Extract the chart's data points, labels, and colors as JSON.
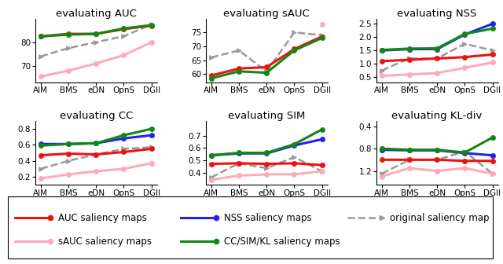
{
  "x_labels": [
    "AIM",
    "BMS",
    "eDN",
    "OpnS",
    "DGII"
  ],
  "titles": [
    "evaluating AUC",
    "evaluating sAUC",
    "evaluating NSS",
    "evaluating CC",
    "evaluating SIM",
    "evaluating KL-div"
  ],
  "series": {
    "AUC_maps": {
      "color": "#ee1111",
      "linewidth": 2.2,
      "marker": "o",
      "markersize": 4.5,
      "zorder": 3,
      "linestyle": "-",
      "data": {
        "AUC": [
          82.5,
          83.5,
          83.5,
          85.5,
          87.0
        ],
        "sAUC": [
          59.5,
          62.0,
          62.5,
          69.0,
          73.5
        ],
        "NSS": [
          1.1,
          1.15,
          1.2,
          1.25,
          1.35
        ],
        "CC": [
          0.47,
          0.49,
          0.48,
          0.51,
          0.55
        ],
        "SIM": [
          0.47,
          0.475,
          0.47,
          0.475,
          0.46
        ],
        "KL-div": [
          1.0,
          1.0,
          1.0,
          1.02,
          1.02
        ]
      }
    },
    "sAUC_maps": {
      "color": "#ffaabb",
      "linewidth": 2.2,
      "marker": "o",
      "markersize": 4.5,
      "zorder": 2,
      "linestyle": "-",
      "data": {
        "AUC": [
          65.5,
          68.0,
          71.0,
          74.5,
          80.0
        ],
        "sAUC": [
          null,
          null,
          null,
          null,
          78.0
        ],
        "NSS": [
          0.55,
          0.6,
          0.65,
          0.85,
          1.05
        ],
        "CC": [
          0.18,
          0.23,
          0.27,
          0.3,
          0.37
        ],
        "SIM": [
          0.34,
          0.375,
          0.385,
          0.385,
          0.41
        ],
        "KL-div": [
          1.3,
          1.15,
          1.2,
          1.15,
          1.25
        ]
      }
    },
    "NSS_maps": {
      "color": "#2222ee",
      "linewidth": 2.2,
      "marker": "o",
      "markersize": 4.5,
      "zorder": 3,
      "linestyle": "-",
      "data": {
        "AUC": null,
        "sAUC": null,
        "NSS": [
          1.5,
          1.55,
          1.55,
          2.1,
          2.5
        ],
        "CC": [
          0.61,
          0.61,
          0.62,
          0.68,
          0.72
        ],
        "SIM": [
          0.54,
          0.555,
          0.555,
          0.62,
          0.67
        ],
        "KL-div": [
          0.82,
          0.83,
          0.83,
          0.88,
          0.92
        ]
      }
    },
    "CC_SIM_KL_maps": {
      "color": "#118811",
      "linewidth": 2.2,
      "marker": "o",
      "markersize": 4.5,
      "zorder": 3,
      "linestyle": "-",
      "data": {
        "AUC": [
          82.4,
          83.2,
          83.5,
          85.8,
          87.2
        ],
        "sAUC": [
          58.5,
          61.0,
          60.5,
          68.5,
          73.0
        ],
        "NSS": [
          1.52,
          1.57,
          1.58,
          2.12,
          2.32
        ],
        "CC": [
          0.59,
          0.61,
          0.62,
          0.72,
          0.8
        ],
        "SIM": [
          0.54,
          0.56,
          0.56,
          0.63,
          0.75
        ],
        "KL-div": [
          0.8,
          0.82,
          0.82,
          0.87,
          0.6
        ]
      }
    },
    "original": {
      "color": "#999999",
      "linewidth": 1.8,
      "marker": ">",
      "markersize": 5,
      "zorder": 1,
      "linestyle": "--",
      "data": {
        "AUC": [
          74.0,
          77.5,
          80.0,
          82.5,
          87.5
        ],
        "sAUC": [
          66.0,
          68.5,
          61.0,
          75.0,
          74.0
        ],
        "NSS": [
          0.75,
          1.2,
          1.2,
          1.75,
          1.5
        ],
        "CC": [
          0.3,
          0.4,
          0.48,
          0.55,
          0.57
        ],
        "SIM": [
          0.36,
          0.475,
          0.435,
          0.525,
          0.41
        ],
        "KL-div": [
          1.25,
          1.0,
          1.0,
          0.85,
          1.25
        ]
      }
    }
  },
  "ylims": {
    "AUC": [
      63,
      90
    ],
    "sAUC": [
      57,
      80
    ],
    "NSS": [
      0.3,
      2.7
    ],
    "CC": [
      0.1,
      0.9
    ],
    "SIM": [
      0.3,
      0.82
    ],
    "KL-div": [
      0.3,
      1.45
    ]
  },
  "yticks": {
    "AUC": [
      70,
      80
    ],
    "sAUC": [
      60,
      65,
      70,
      75
    ],
    "NSS": [
      0.5,
      1.0,
      1.5,
      2.0,
      2.5
    ],
    "CC": [
      0.2,
      0.4,
      0.6,
      0.8
    ],
    "SIM": [
      0.4,
      0.5,
      0.6,
      0.7
    ],
    "KL-div": [
      0.4,
      0.8,
      1.2
    ]
  },
  "kl_invert": true,
  "background_color": "#ffffff",
  "title_fontsize": 9.5,
  "tick_fontsize": 7.5,
  "legend_fontsize": 8.5
}
